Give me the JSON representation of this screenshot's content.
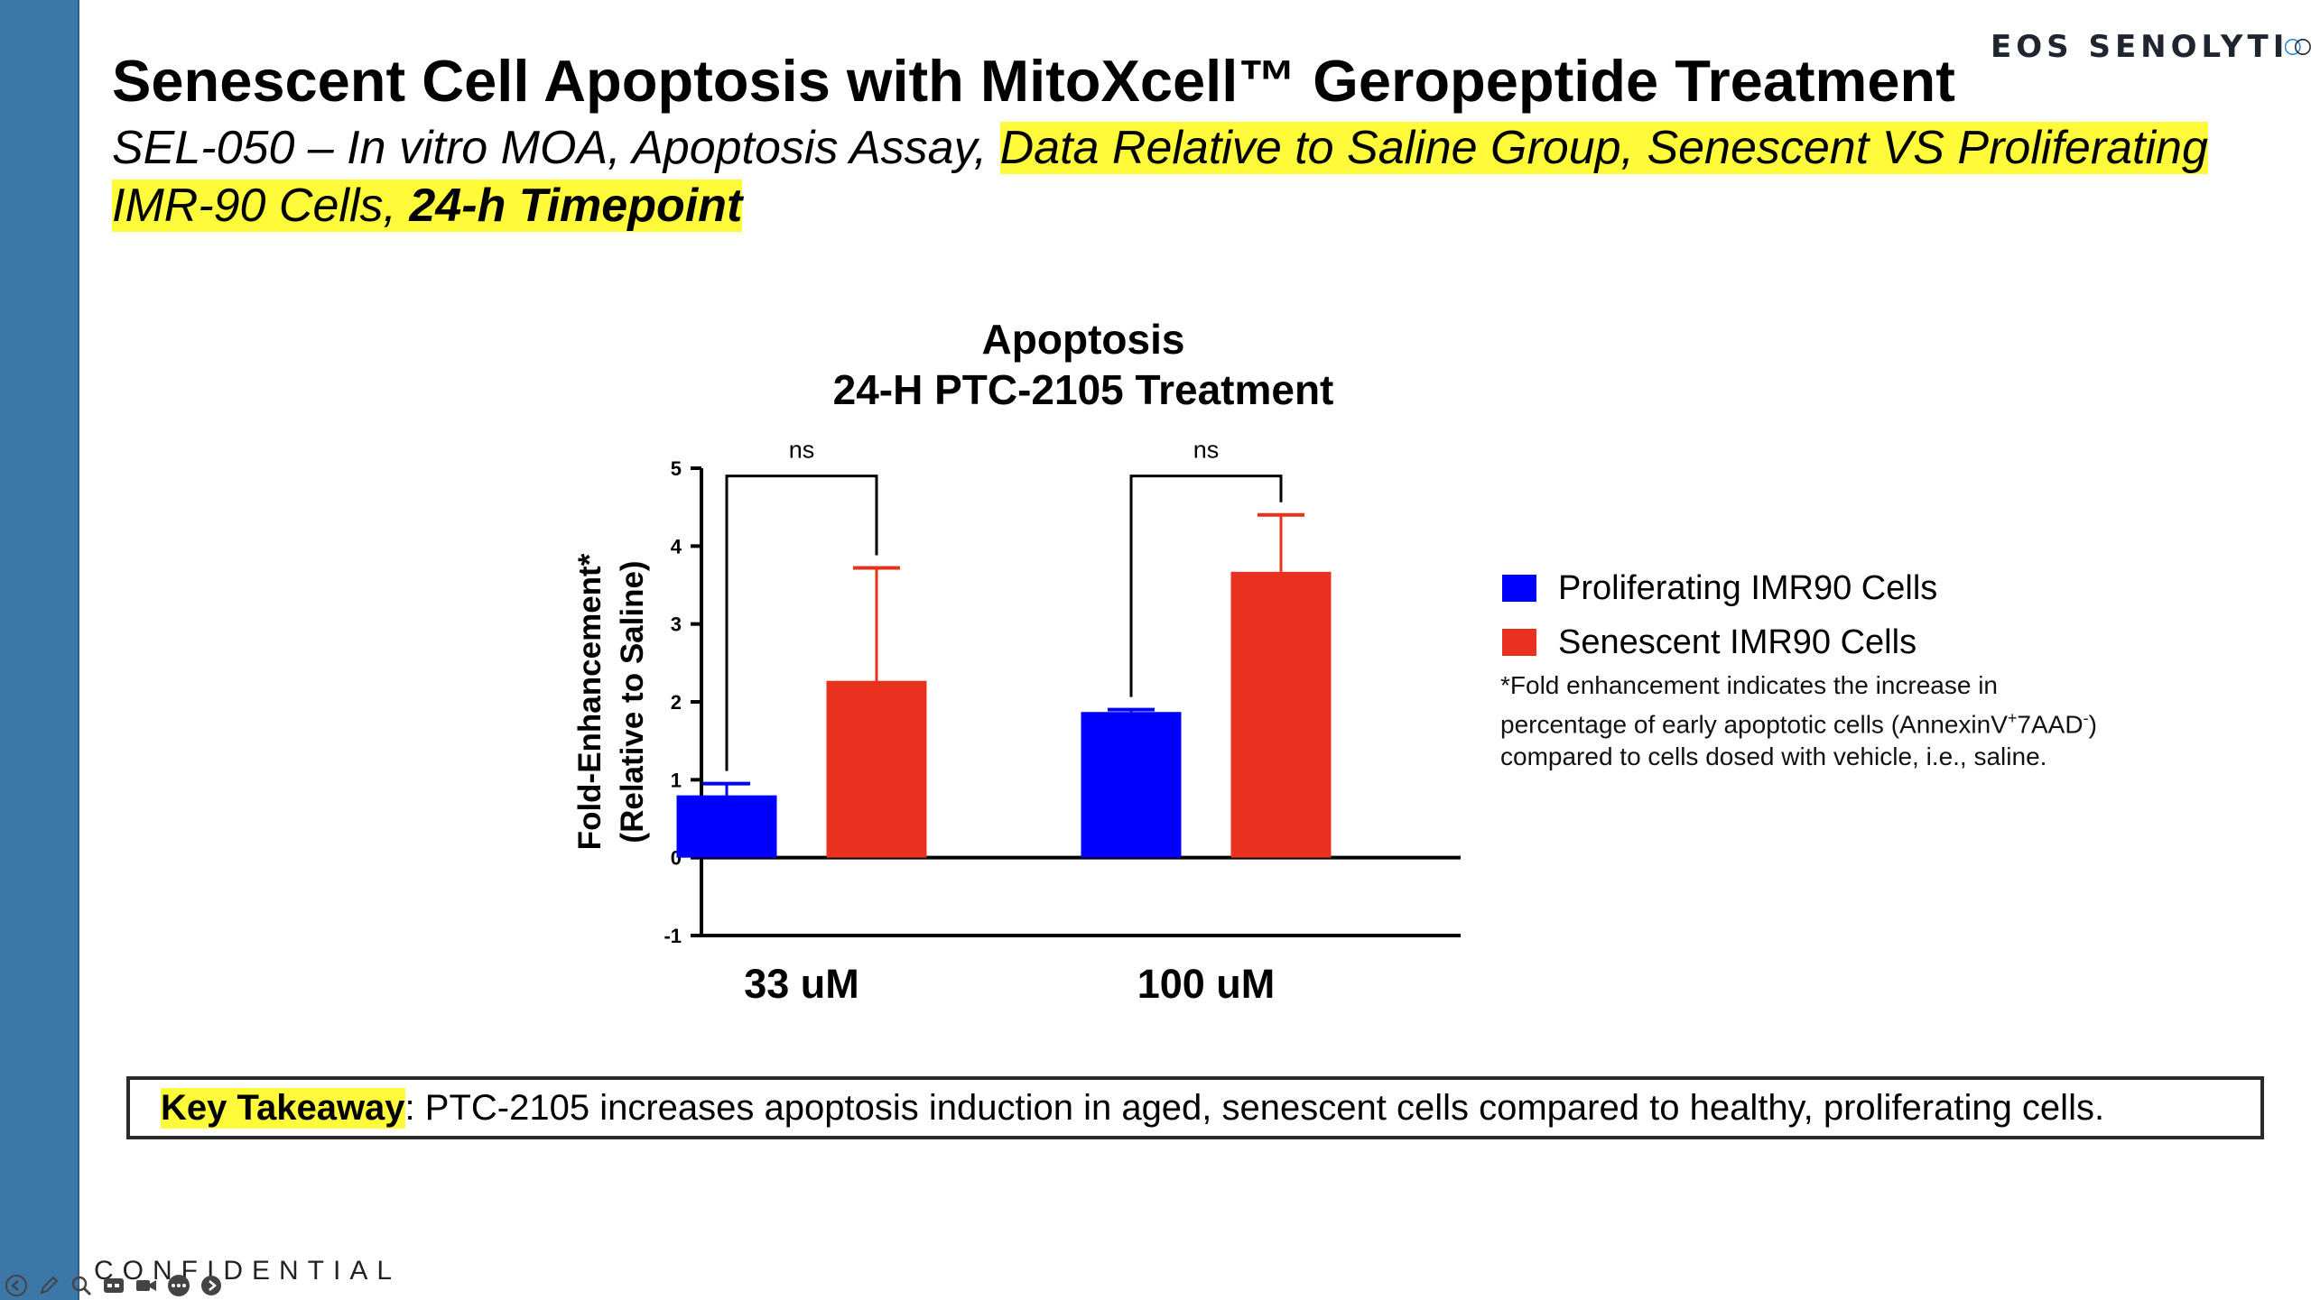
{
  "logo": {
    "text": "EOS SENOLYTI",
    "icon": "x-mark-icon"
  },
  "title": "Senescent Cell Apoptosis with MitoXcell™ Geropeptide Treatment",
  "subtitle": {
    "plain": "SEL-050 – In vitro MOA, Apoptosis Assay, ",
    "highlight": "Data Relative to Saline Group, Senescent VS Proliferating IMR-90 Cells, ",
    "bold": "24-h Timepoint"
  },
  "chart_data": {
    "type": "bar",
    "title": [
      "Apoptosis",
      "24-H PTC-2105 Treatment"
    ],
    "ylabel": [
      "Fold-Enhancement*",
      "(Relative to Saline)"
    ],
    "xlabel": "",
    "categories": [
      "33 uM",
      "100 uM"
    ],
    "ylim": [
      -1,
      5
    ],
    "yticks": [
      -1,
      0,
      1,
      2,
      3,
      4,
      5
    ],
    "series": [
      {
        "name": "Proliferating IMR90 Cells",
        "color": "#0000ff",
        "values": [
          0.8,
          1.87
        ],
        "error": [
          0.15,
          0.03
        ]
      },
      {
        "name": "Senescent IMR90 Cells",
        "color": "#e8321f",
        "values": [
          2.27,
          3.67
        ],
        "error": [
          1.45,
          0.73
        ]
      }
    ],
    "significance": [
      {
        "category": "33 uM",
        "label": "ns"
      },
      {
        "category": "100 uM",
        "label": "ns"
      }
    ],
    "legend_position": "right",
    "grid": false
  },
  "footnote": {
    "line1": "*Fold enhancement indicates the increase in",
    "line2a": "percentage of early apoptotic cells (AnnexinV",
    "sup1": "+",
    "line2b": "7AAD",
    "sup2": "-",
    "line2c": ")",
    "line3": "compared to cells dosed with vehicle, i.e., saline."
  },
  "takeaway": {
    "label": "Key Takeaway",
    "text": ": PTC-2105 increases apoptosis induction in aged, senescent cells compared to healthy, proliferating cells."
  },
  "confidential": "CONFIDENTIAL",
  "viewer_controls": [
    "previous-icon",
    "pen-icon",
    "zoom-icon",
    "captions-icon",
    "camera-icon",
    "more-icon",
    "next-icon"
  ]
}
